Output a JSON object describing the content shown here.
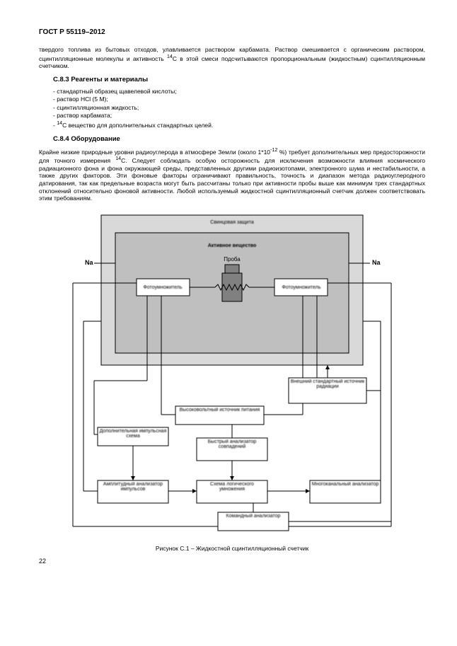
{
  "header": "ГОСТ Р 55119–2012",
  "intro_para": "твердого топлива из бытовых отходов, улавливается раствором карбамата. Раствор смешивается с органическим раствором, сцинтилляционные молекулы и активность <sup>14</sup>C в этой смеси подсчитываются пропорциональным (жидкостным) сцинтилляционным счетчиком.",
  "sec_c83": "С.8.3 Реагенты и материалы",
  "bullets_c83": [
    "- стандартный образец щавелевой кислоты;",
    "- раствор HCl (5 М);",
    "- сцинтилляционная жидкость;",
    "- раствор карбамата;",
    "- <sup>14</sup>C вещество для дополнительных стандартных целей."
  ],
  "sec_c84": "С.8.4 Оборудование",
  "para_c84": "Крайне низкие природные уровни радиоуглерода в атмосфере Земли (около 1*10<sup>-12</sup> %) требует дополнительных мер предосторожности для точного измерения <sup>14</sup>C. Следует соблюдать особую осторожность для исключения возможности влияния космического радиационного фона и фона окружающей среды, представленных другими радиоизотопами, электронного шума и нестабильности, а также других факторов. Эти фоновые факторы ограничивают правильность, точность и диапазон метода радиоуглеродного датирования, так как предельные возраста могут быть рассчитаны только при активности пробы выше как минимум трех стандартных отклонений относительно фоновой активности. Любой используемый жидкостной сцинтилляционный счетчик должен соответствовать этим требованиям.",
  "caption": "Рисунок С.1 – Жидкостной сцинтилляционный счетчик",
  "page_number": "22",
  "diagram": {
    "labels": {
      "lead_shield": "Свинцовая защита",
      "active": "Активное вещество",
      "sample": "Проба",
      "na_left": "Na",
      "na_right": "Na",
      "pm_left": "Фотоумножитель",
      "pm_right": "Фотоумножитель",
      "ext_std": "Внешний стандартный источник радиации",
      "hv_supply": "Высоковольтный источник питания",
      "aux_pulse": "Дополнительная импульсная схема",
      "fast_coinc": "Быстрый анализатор совпадений",
      "amp_analyzer": "Амплитудный анализатор импульсов",
      "logic_mult": "Схема логического умножения",
      "multichannel": "Многоканальный анализатор",
      "cmd_analyzer": "Командный анализатор"
    },
    "colors": {
      "stroke": "#000000",
      "fill_outer": "#d9d9d9",
      "fill_inner": "#bfbfbf",
      "fill_sample": "#808080",
      "bg": "#ffffff"
    }
  }
}
